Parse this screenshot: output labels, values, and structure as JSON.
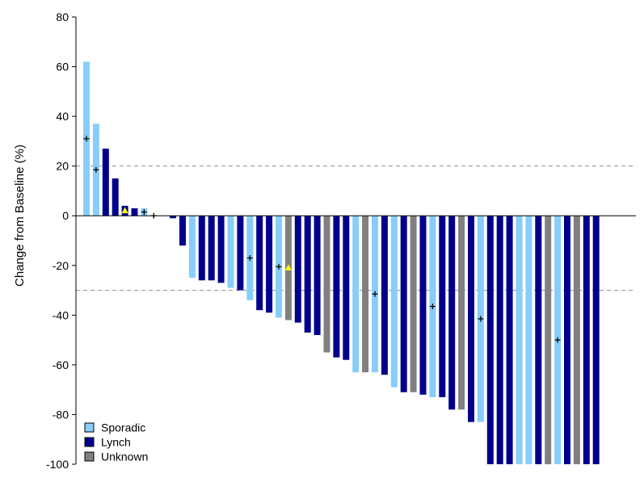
{
  "chart_data": {
    "type": "bar",
    "ylabel": "Change from Baseline (%)",
    "ylim": [
      -100,
      80
    ],
    "yticks": [
      80,
      60,
      40,
      20,
      0,
      -20,
      -40,
      -60,
      -80,
      -100
    ],
    "reference_lines": [
      20,
      -30
    ],
    "legend_position": "bottom-left",
    "legend": [
      {
        "name": "Sporadic",
        "color": "#87cefa"
      },
      {
        "name": "Lynch",
        "color": "#00008b"
      },
      {
        "name": "Unknown",
        "color": "#808080"
      }
    ],
    "bars": [
      {
        "value": 62,
        "group": "Sporadic",
        "marker": "plus",
        "marker_value": 31
      },
      {
        "value": 37,
        "group": "Sporadic",
        "marker": "plus",
        "marker_value": 18.5
      },
      {
        "value": 27,
        "group": "Lynch"
      },
      {
        "value": 15,
        "group": "Lynch"
      },
      {
        "value": 4,
        "group": "Lynch",
        "marker": "triangle",
        "marker_value": 2
      },
      {
        "value": 3,
        "group": "Lynch"
      },
      {
        "value": 3,
        "group": "Sporadic",
        "marker": "plus",
        "marker_value": 1.5
      },
      {
        "value": 0,
        "group": "Lynch",
        "marker": "plus",
        "marker_value": 0
      },
      {
        "value": 0,
        "group": "Lynch"
      },
      {
        "value": -1,
        "group": "Lynch"
      },
      {
        "value": -12,
        "group": "Lynch"
      },
      {
        "value": -25,
        "group": "Sporadic"
      },
      {
        "value": -26,
        "group": "Lynch"
      },
      {
        "value": -26,
        "group": "Lynch"
      },
      {
        "value": -27,
        "group": "Lynch"
      },
      {
        "value": -29,
        "group": "Sporadic"
      },
      {
        "value": -30,
        "group": "Lynch"
      },
      {
        "value": -34,
        "group": "Sporadic",
        "marker": "plus",
        "marker_value": -17
      },
      {
        "value": -38,
        "group": "Lynch"
      },
      {
        "value": -39,
        "group": "Lynch"
      },
      {
        "value": -41,
        "group": "Sporadic",
        "marker": "plus",
        "marker_value": -20.5
      },
      {
        "value": -42,
        "group": "Unknown",
        "marker": "triangle",
        "marker_value": -21
      },
      {
        "value": -43,
        "group": "Lynch"
      },
      {
        "value": -47,
        "group": "Lynch"
      },
      {
        "value": -48,
        "group": "Lynch"
      },
      {
        "value": -55,
        "group": "Unknown"
      },
      {
        "value": -57,
        "group": "Lynch"
      },
      {
        "value": -58,
        "group": "Lynch"
      },
      {
        "value": -63,
        "group": "Sporadic"
      },
      {
        "value": -63,
        "group": "Unknown"
      },
      {
        "value": -63,
        "group": "Sporadic",
        "marker": "plus",
        "marker_value": -31.5
      },
      {
        "value": -64,
        "group": "Lynch"
      },
      {
        "value": -69,
        "group": "Sporadic"
      },
      {
        "value": -71,
        "group": "Lynch"
      },
      {
        "value": -71,
        "group": "Unknown"
      },
      {
        "value": -72,
        "group": "Lynch"
      },
      {
        "value": -73,
        "group": "Sporadic",
        "marker": "plus",
        "marker_value": -36.5
      },
      {
        "value": -73,
        "group": "Lynch"
      },
      {
        "value": -78,
        "group": "Lynch"
      },
      {
        "value": -78,
        "group": "Unknown"
      },
      {
        "value": -83,
        "group": "Lynch"
      },
      {
        "value": -83,
        "group": "Sporadic",
        "marker": "plus",
        "marker_value": -41.5
      },
      {
        "value": -100,
        "group": "Lynch"
      },
      {
        "value": -100,
        "group": "Lynch"
      },
      {
        "value": -100,
        "group": "Lynch"
      },
      {
        "value": -100,
        "group": "Sporadic"
      },
      {
        "value": -100,
        "group": "Sporadic"
      },
      {
        "value": -100,
        "group": "Lynch"
      },
      {
        "value": -100,
        "group": "Unknown"
      },
      {
        "value": -100,
        "group": "Sporadic",
        "marker": "plus",
        "marker_value": -50
      },
      {
        "value": -100,
        "group": "Lynch"
      },
      {
        "value": -100,
        "group": "Unknown"
      },
      {
        "value": -100,
        "group": "Lynch"
      },
      {
        "value": -100,
        "group": "Lynch"
      }
    ]
  }
}
